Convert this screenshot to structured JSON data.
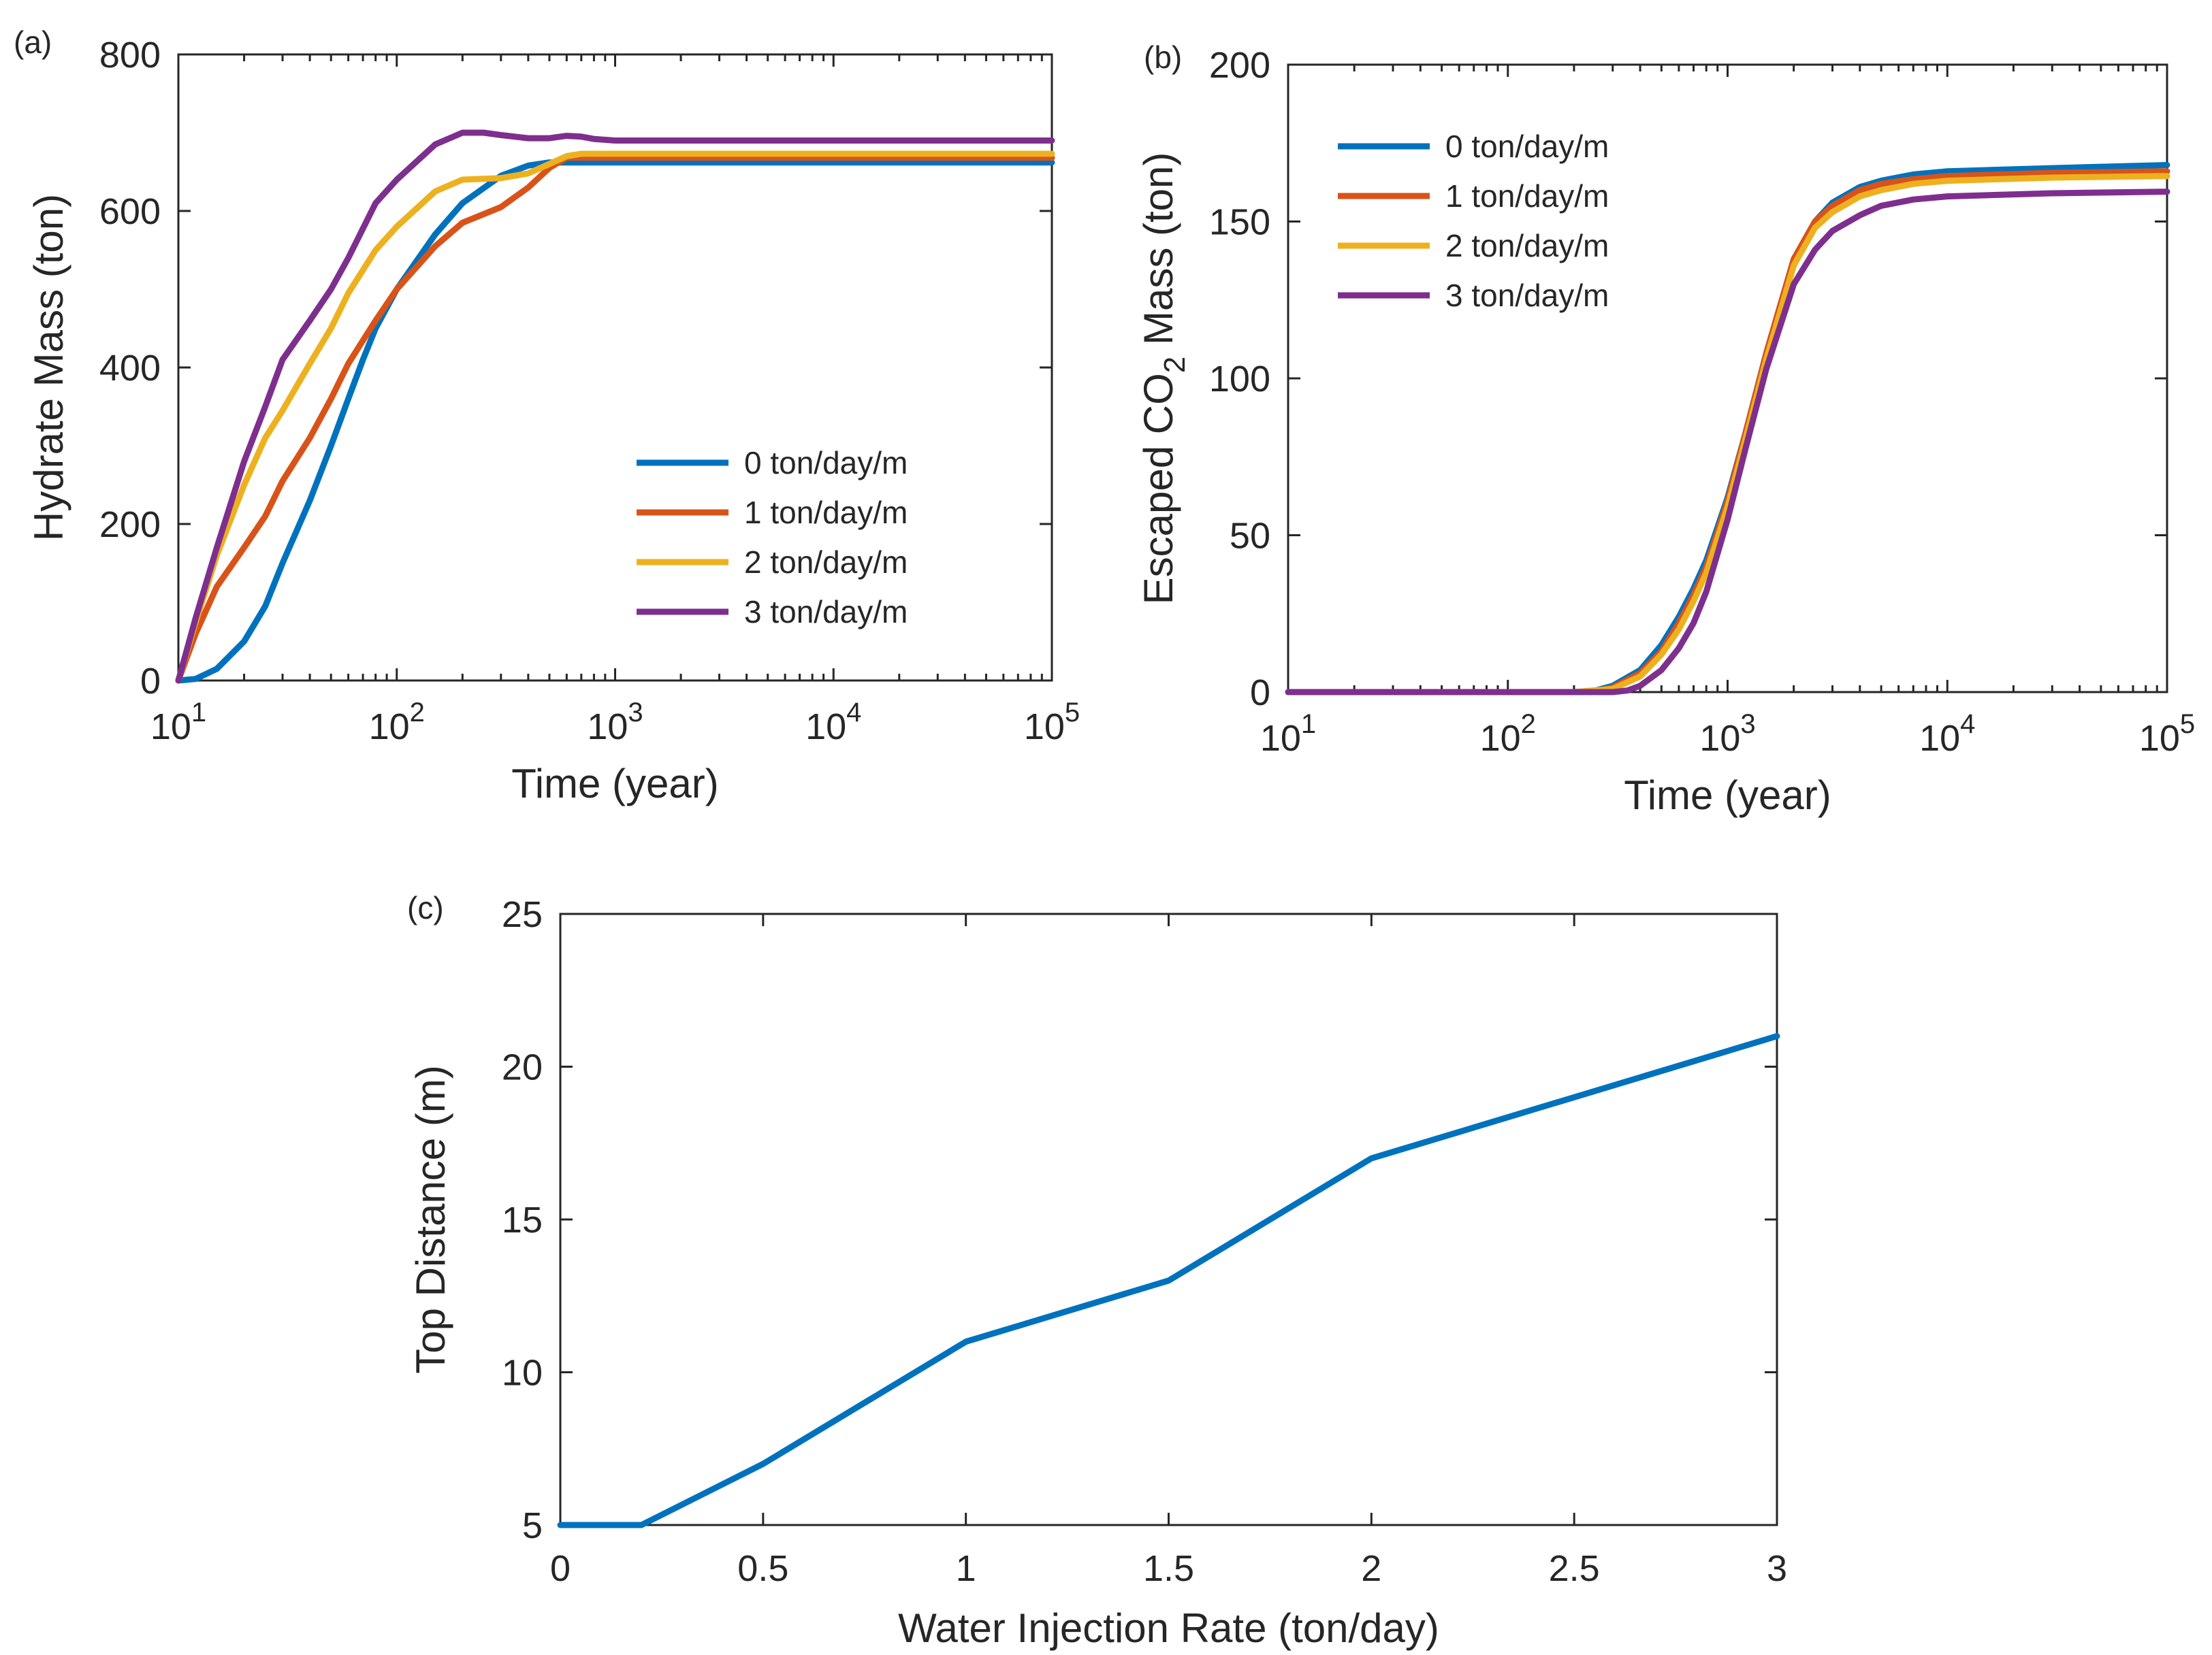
{
  "chart_data": [
    {
      "type": "line",
      "panel_label": "(a)",
      "xscale": "log",
      "xlim": [
        10,
        100000
      ],
      "ylim": [
        0,
        800
      ],
      "xticks": [
        10,
        100,
        1000,
        10000,
        100000
      ],
      "xtick_labels": [
        {
          "base": "10",
          "exp": "1"
        },
        {
          "base": "10",
          "exp": "2"
        },
        {
          "base": "10",
          "exp": "3"
        },
        {
          "base": "10",
          "exp": "4"
        },
        {
          "base": "10",
          "exp": "5"
        }
      ],
      "yticks": [
        0,
        200,
        400,
        600,
        800
      ],
      "ytick_labels": [
        "0",
        "200",
        "400",
        "600",
        "800"
      ],
      "xlabel": "Time (year)",
      "ylabel": "Hydrate Mass (ton)",
      "legend_position": "lower-right",
      "series": [
        {
          "name": "0  ton/day/m",
          "color": "#0072BD",
          "x": [
            10,
            12,
            15,
            20,
            25,
            30,
            40,
            50,
            60,
            70,
            80,
            100,
            150,
            200,
            300,
            400,
            500,
            700,
            1000,
            10000,
            100000
          ],
          "y": [
            0,
            2,
            15,
            50,
            95,
            150,
            230,
            300,
            360,
            410,
            450,
            500,
            570,
            610,
            645,
            658,
            662,
            662,
            662,
            662,
            662
          ]
        },
        {
          "name": "1  ton/day/m",
          "color": "#D95319",
          "x": [
            10,
            12,
            15,
            20,
            25,
            30,
            40,
            50,
            60,
            80,
            100,
            150,
            200,
            300,
            400,
            500,
            600,
            700,
            1000,
            10000,
            100000
          ],
          "y": [
            0,
            60,
            120,
            170,
            210,
            255,
            310,
            360,
            405,
            460,
            500,
            555,
            585,
            605,
            630,
            655,
            668,
            668,
            668,
            668,
            668
          ]
        },
        {
          "name": "2  ton/day/m",
          "color": "#EDB120",
          "x": [
            10,
            12,
            15,
            20,
            25,
            30,
            40,
            50,
            60,
            80,
            100,
            150,
            200,
            300,
            400,
            500,
            600,
            700,
            1000,
            10000,
            100000
          ],
          "y": [
            0,
            75,
            160,
            250,
            310,
            345,
            405,
            450,
            495,
            550,
            580,
            625,
            640,
            642,
            648,
            660,
            670,
            673,
            673,
            673,
            673
          ]
        },
        {
          "name": "3  ton/day/m",
          "color": "#7E2F8E",
          "x": [
            10,
            12,
            15,
            20,
            25,
            30,
            40,
            50,
            60,
            80,
            100,
            150,
            200,
            250,
            300,
            400,
            500,
            600,
            700,
            800,
            1000,
            10000,
            100000
          ],
          "y": [
            0,
            80,
            170,
            280,
            350,
            410,
            460,
            500,
            540,
            610,
            640,
            685,
            700,
            700,
            697,
            693,
            693,
            696,
            695,
            692,
            690,
            690,
            690
          ]
        }
      ]
    },
    {
      "type": "line",
      "panel_label": "(b)",
      "xscale": "log",
      "xlim": [
        10,
        100000
      ],
      "ylim": [
        0,
        200
      ],
      "xticks": [
        10,
        100,
        1000,
        10000,
        100000
      ],
      "xtick_labels": [
        {
          "base": "10",
          "exp": "1"
        },
        {
          "base": "10",
          "exp": "2"
        },
        {
          "base": "10",
          "exp": "3"
        },
        {
          "base": "10",
          "exp": "4"
        },
        {
          "base": "10",
          "exp": "5"
        }
      ],
      "yticks": [
        0,
        50,
        100,
        150,
        200
      ],
      "ytick_labels": [
        "0",
        "50",
        "100",
        "150",
        "200"
      ],
      "xlabel": "Time (year)",
      "ylabel_parts": {
        "before": "Escaped CO",
        "sub": "2",
        "after": " Mass (ton)"
      },
      "legend_position": "top-left",
      "series": [
        {
          "name": "0  ton/day/m",
          "color": "#0072BD",
          "x": [
            10,
            100,
            200,
            250,
            300,
            400,
            500,
            600,
            700,
            800,
            1000,
            1200,
            1500,
            2000,
            2500,
            3000,
            4000,
            5000,
            7000,
            10000,
            30000,
            100000
          ],
          "y": [
            0,
            0,
            0,
            0.5,
            2,
            7,
            15,
            24,
            33,
            42,
            62,
            82,
            108,
            138,
            150,
            156,
            161,
            163,
            165,
            166,
            167,
            168
          ]
        },
        {
          "name": "1  ton/day/m",
          "color": "#D95319",
          "x": [
            10,
            100,
            200,
            250,
            300,
            400,
            500,
            600,
            700,
            800,
            1000,
            1200,
            1500,
            2000,
            2500,
            3000,
            4000,
            5000,
            7000,
            10000,
            30000,
            100000
          ],
          "y": [
            0,
            0,
            0,
            0.2,
            1.5,
            6,
            13,
            22,
            31,
            40,
            61,
            82,
            108,
            138,
            150,
            155,
            160,
            162,
            163.5,
            164.5,
            165.5,
            166
          ]
        },
        {
          "name": "2  ton/day/m",
          "color": "#EDB120",
          "x": [
            10,
            100,
            200,
            300,
            400,
            500,
            600,
            700,
            800,
            1000,
            1200,
            1500,
            2000,
            2500,
            3000,
            4000,
            5000,
            7000,
            10000,
            30000,
            100000
          ],
          "y": [
            0,
            0,
            0,
            1,
            5,
            12,
            20,
            29,
            38,
            59,
            80,
            106,
            136,
            148,
            153,
            158,
            160,
            162,
            163,
            164,
            164.5
          ]
        },
        {
          "name": "3  ton/day/m",
          "color": "#7E2F8E",
          "x": [
            10,
            100,
            200,
            300,
            350,
            400,
            500,
            600,
            700,
            800,
            1000,
            1200,
            1500,
            2000,
            2500,
            3000,
            4000,
            5000,
            7000,
            10000,
            30000,
            100000
          ],
          "y": [
            0,
            0,
            0,
            0,
            0.5,
            2,
            7,
            14,
            22,
            32,
            55,
            77,
            103,
            130,
            141,
            147,
            152,
            155,
            157,
            158,
            159,
            159.5
          ]
        }
      ]
    },
    {
      "type": "line",
      "panel_label": "(c)",
      "xscale": "linear",
      "xlim": [
        0,
        3
      ],
      "ylim": [
        5,
        25
      ],
      "xticks": [
        0,
        0.5,
        1,
        1.5,
        2,
        2.5,
        3
      ],
      "xtick_labels": [
        "0",
        "0.5",
        "1",
        "1.5",
        "2",
        "2.5",
        "3"
      ],
      "yticks": [
        5,
        10,
        15,
        20,
        25
      ],
      "ytick_labels": [
        "5",
        "10",
        "15",
        "20",
        "25"
      ],
      "xlabel": "Water Injection Rate (ton/day)",
      "ylabel": "Top Distance (m)",
      "series": [
        {
          "name": "Top Distance",
          "color": "#0072BD",
          "x": [
            0,
            0.2,
            0.5,
            1,
            1.5,
            2,
            3
          ],
          "y": [
            5,
            5,
            7,
            11,
            13,
            17,
            21
          ]
        }
      ]
    }
  ]
}
